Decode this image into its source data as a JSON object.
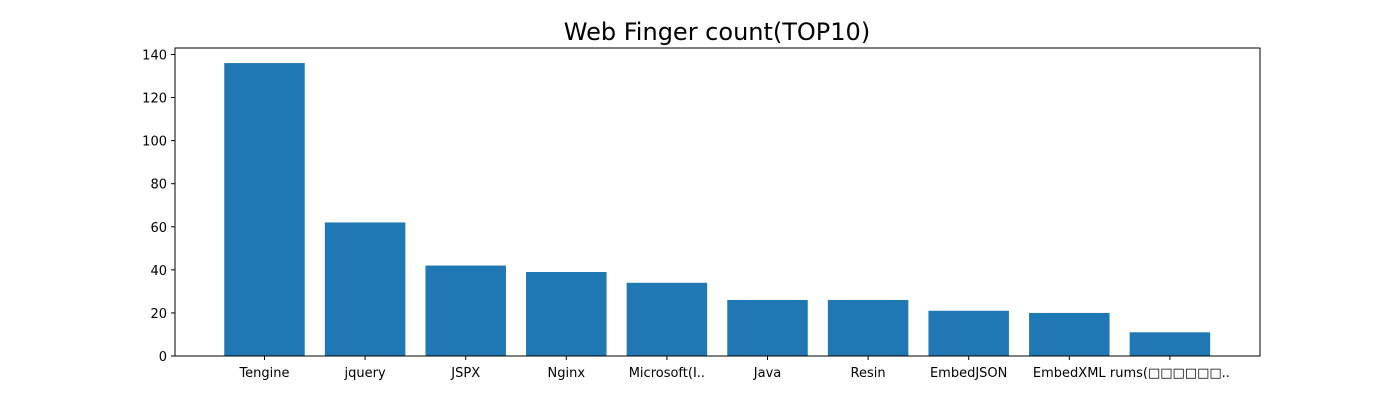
{
  "chart_data": {
    "type": "bar",
    "title": "Web Finger count(TOP10)",
    "xlabel": "",
    "ylabel": "",
    "categories": [
      "Tengine",
      "jquery",
      "JSPX",
      "Nginx",
      "Microsoft(I..",
      "Java",
      "Resin",
      "EmbedJSON",
      "EmbedXML",
      "rums(□□□□□□.."
    ],
    "values": [
      136,
      62,
      42,
      39,
      34,
      26,
      26,
      21,
      20,
      11
    ],
    "ylim": [
      0,
      143
    ],
    "yticks": [
      0,
      20,
      40,
      60,
      80,
      100,
      120,
      140
    ],
    "bar_color": "#1f77b4",
    "grid": false,
    "legend": "none"
  }
}
